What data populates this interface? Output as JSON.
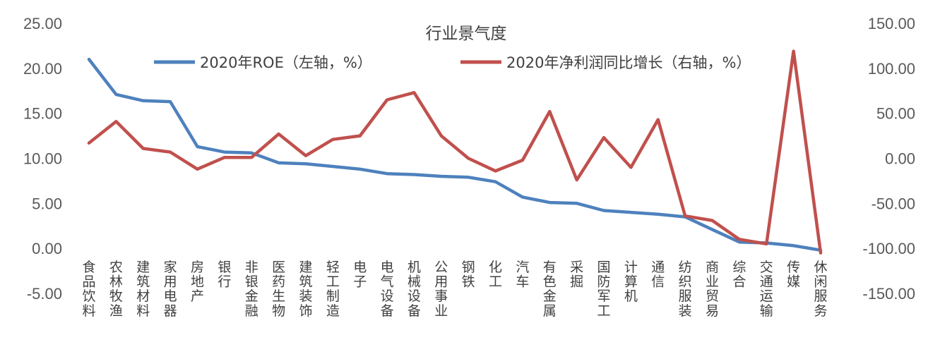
{
  "chart_data": {
    "type": "line",
    "title": "行业景气度",
    "categories": [
      "食品饮料",
      "农林牧渔",
      "建筑材料",
      "家用电器",
      "房地产",
      "银行",
      "非银金融",
      "医药生物",
      "建筑装饰",
      "轻工制造",
      "电子",
      "电气设备",
      "机械设备",
      "公用事业",
      "钢铁",
      "化工",
      "汽车",
      "有色金属",
      "采掘",
      "国防军工",
      "计算机",
      "通信",
      "纺织服装",
      "商业贸易",
      "综合",
      "交通运输",
      "传媒",
      "休闲服务"
    ],
    "y_left": {
      "ylim": [
        -5,
        25
      ],
      "ticks": [
        "25.00",
        "20.00",
        "15.00",
        "10.00",
        "5.00",
        "0.00",
        "-5.00"
      ],
      "tick_values": [
        25,
        20,
        15,
        10,
        5,
        0,
        -5
      ]
    },
    "y_right": {
      "ylim": [
        -150,
        150
      ],
      "ticks": [
        "150.00",
        "100.00",
        "50.00",
        "0.00",
        "-50.00",
        "-100.00",
        "-150.00"
      ],
      "tick_values": [
        150,
        100,
        50,
        0,
        -50,
        -100,
        -150
      ]
    },
    "series": [
      {
        "name": "2020年ROE（左轴，%）",
        "axis": "left",
        "color": "#4E81BD",
        "values": [
          21.0,
          17.1,
          16.4,
          16.3,
          11.3,
          10.7,
          10.6,
          9.5,
          9.4,
          9.1,
          8.8,
          8.3,
          8.2,
          8.0,
          7.9,
          7.4,
          5.7,
          5.1,
          5.0,
          4.2,
          4.0,
          3.8,
          3.5,
          2.1,
          0.7,
          0.6,
          0.3,
          -0.2
        ]
      },
      {
        "name": "2020年净利润同比增长（右轴，%）",
        "axis": "right",
        "color": "#C0504D",
        "values": [
          17,
          41,
          11,
          7,
          -12,
          1,
          1,
          27,
          3,
          21,
          25,
          65,
          73,
          25,
          0,
          -14,
          -2,
          52,
          -24,
          23,
          -10,
          43,
          -64,
          -69,
          -90,
          -95,
          119,
          -105
        ]
      }
    ],
    "legend_position": "top"
  }
}
